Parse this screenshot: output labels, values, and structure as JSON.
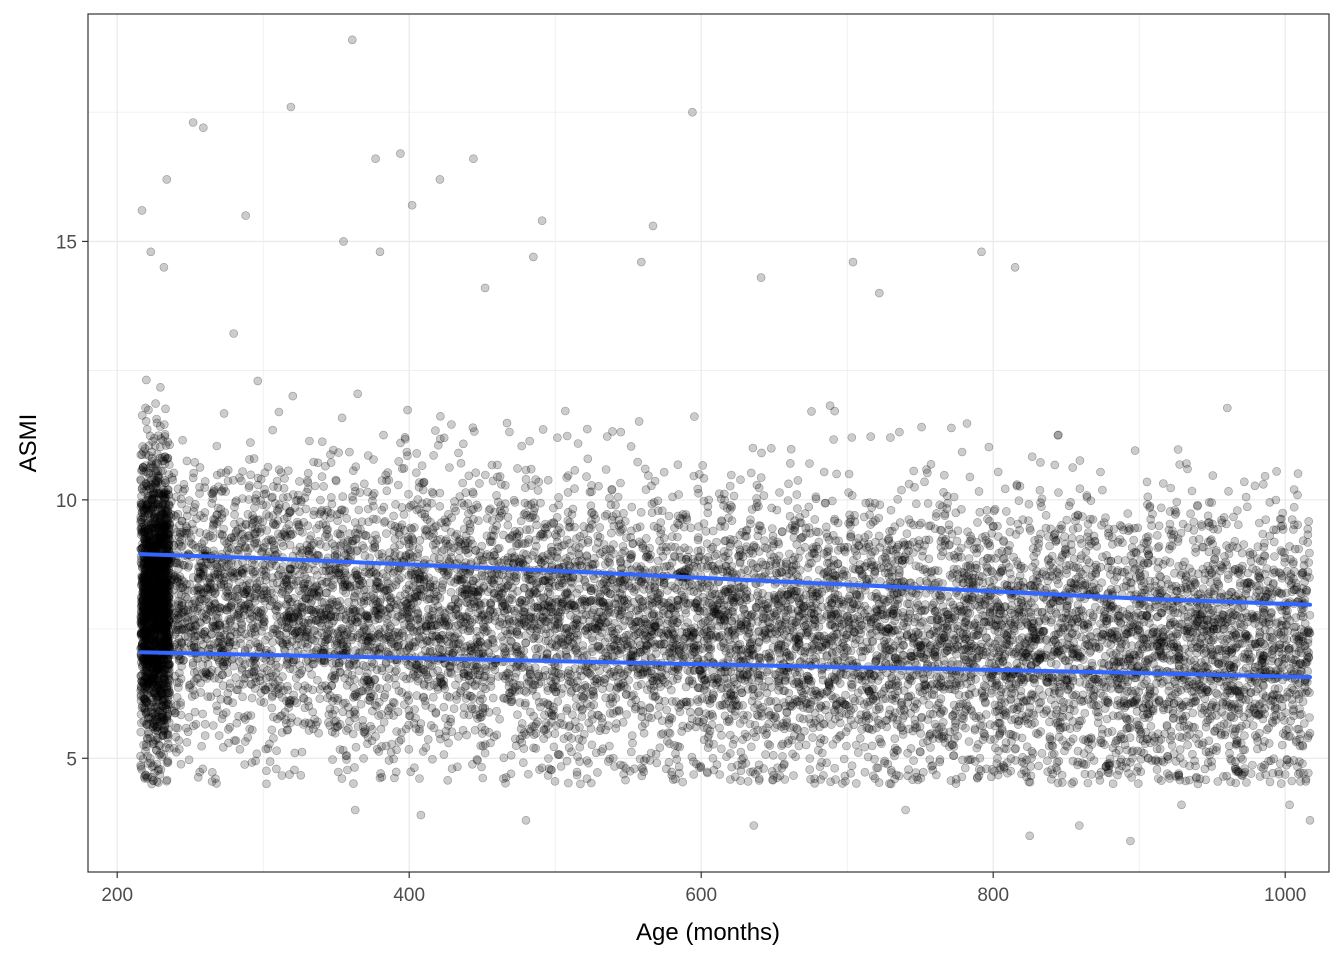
{
  "chart_data": {
    "type": "scatter",
    "title": "",
    "xlabel": "Age (months)",
    "ylabel": "ASMI",
    "xlim": [
      180,
      1030
    ],
    "ylim": [
      2.8,
      19.4
    ],
    "x_ticks": [
      200,
      400,
      600,
      800,
      1000
    ],
    "y_ticks": [
      5,
      10,
      15
    ],
    "grid": true,
    "legend": "none",
    "colors": {
      "points": "#000000",
      "lines": "#3366ff",
      "grid": "#ebebeb",
      "panel_border": "#333333"
    },
    "series": [
      {
        "kind": "points",
        "point_count_approx": 12000,
        "x_range": [
          216,
          1017
        ],
        "y_range": [
          3.4,
          19.0
        ],
        "dense_band_y": [
          4.8,
          10.5
        ],
        "outliers": [
          [
            361,
            18.9
          ],
          [
            319,
            17.6
          ],
          [
            594,
            17.5
          ],
          [
            252,
            17.3
          ],
          [
            259,
            17.2
          ],
          [
            394,
            16.7
          ],
          [
            377,
            16.6
          ],
          [
            444,
            16.6
          ],
          [
            421,
            16.2
          ],
          [
            234,
            16.2
          ],
          [
            402,
            15.7
          ],
          [
            217,
            15.6
          ],
          [
            288,
            15.5
          ],
          [
            491,
            15.4
          ],
          [
            567,
            15.3
          ],
          [
            355,
            15.0
          ],
          [
            223,
            14.8
          ],
          [
            380,
            14.8
          ],
          [
            485,
            14.7
          ],
          [
            232,
            14.5
          ],
          [
            559,
            14.6
          ],
          [
            704,
            14.6
          ],
          [
            792,
            14.8
          ],
          [
            815,
            14.5
          ],
          [
            641,
            14.3
          ],
          [
            722,
            14.0
          ],
          [
            452,
            14.1
          ],
          [
            825,
            3.5
          ],
          [
            894,
            3.4
          ],
          [
            636,
            3.7
          ],
          [
            859,
            3.7
          ],
          [
            408,
            3.9
          ],
          [
            363,
            4.0
          ],
          [
            740,
            4.0
          ],
          [
            1017,
            3.8
          ],
          [
            1003,
            4.1
          ],
          [
            929,
            4.1
          ],
          [
            480,
            3.8
          ]
        ]
      },
      {
        "kind": "line",
        "x": [
          216,
          300,
          400,
          500,
          600,
          700,
          800,
          900,
          1017
        ],
        "y": [
          8.95,
          8.87,
          8.75,
          8.63,
          8.49,
          8.36,
          8.23,
          8.09,
          7.97
        ]
      },
      {
        "kind": "line",
        "x": [
          216,
          300,
          400,
          500,
          600,
          700,
          800,
          900,
          1017
        ],
        "y": [
          7.05,
          7.0,
          6.94,
          6.88,
          6.82,
          6.76,
          6.71,
          6.65,
          6.57
        ]
      }
    ]
  }
}
